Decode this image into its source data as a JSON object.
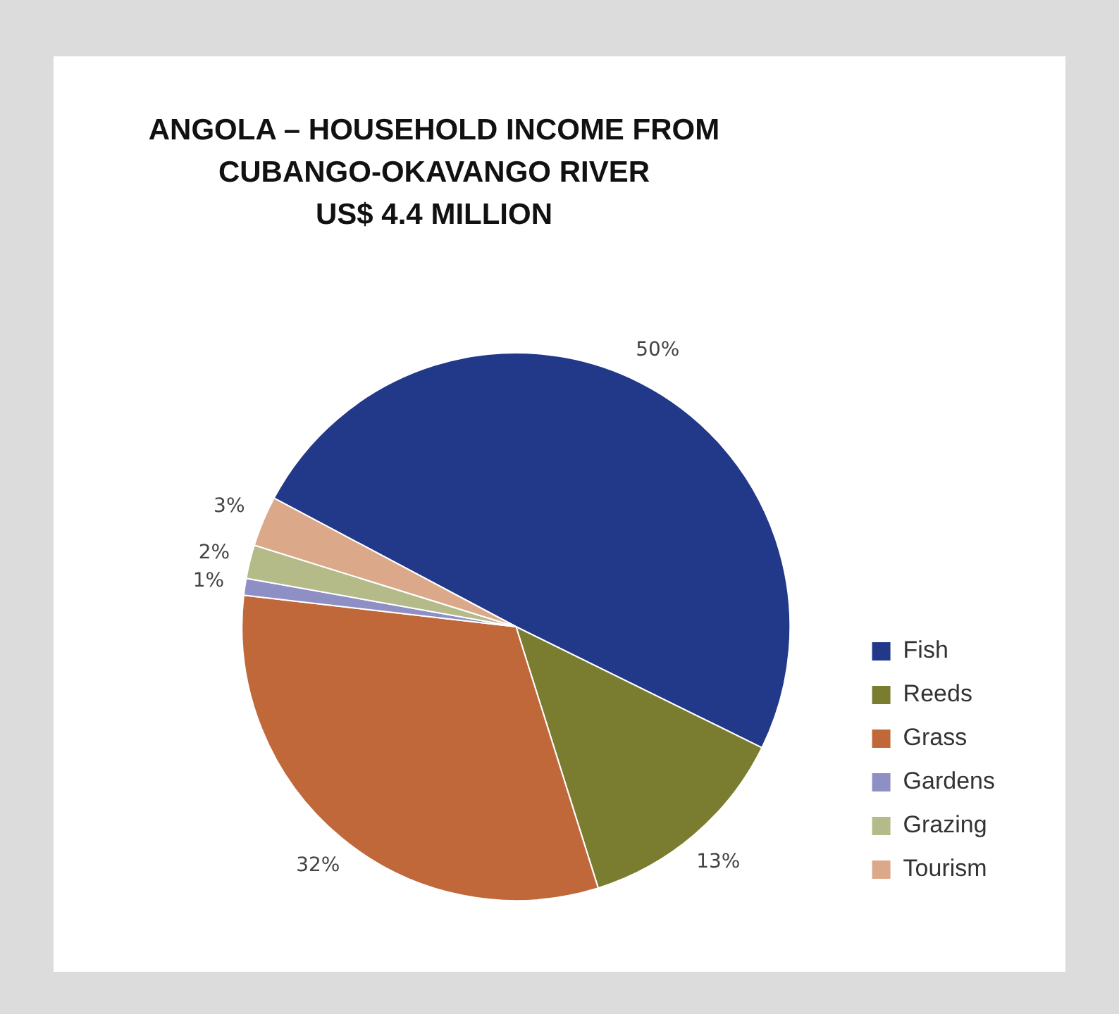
{
  "chart_data": {
    "type": "pie",
    "title": "ANGOLA – HOUSEHOLD INCOME FROM\nCUBANGO-OKAVANGO RIVER\nUS$ 4.4 MILLION",
    "categories": [
      "Fish",
      "Reeds",
      "Grass",
      "Gardens",
      "Grazing",
      "Tourism"
    ],
    "values": [
      50,
      13,
      32,
      1,
      2,
      3
    ],
    "colors": [
      "#22398a",
      "#7a7d2f",
      "#c0683a",
      "#8e8fc4",
      "#b5bb88",
      "#dba88a"
    ],
    "value_labels": [
      "50%",
      "13%",
      "32%",
      "1%",
      "2%",
      "3%"
    ],
    "legend": "bottom right"
  }
}
